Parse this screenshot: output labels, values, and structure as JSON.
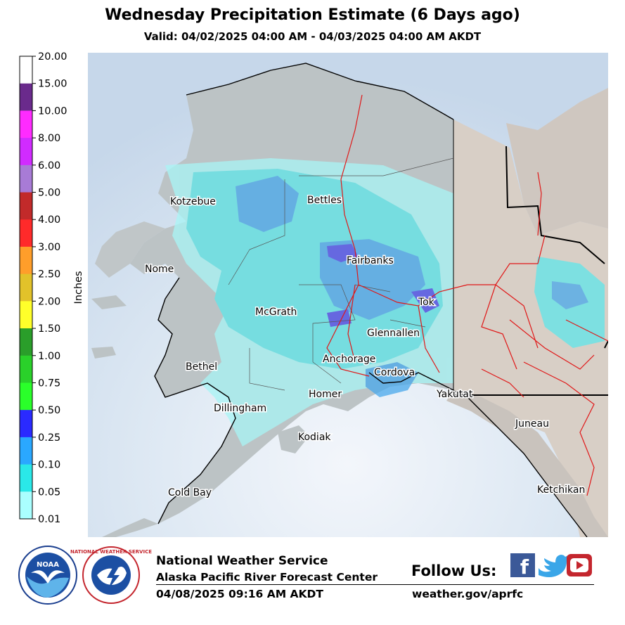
{
  "title": "Wednesday Precipitation Estimate (6 Days ago)",
  "subtitle": "Valid: 04/02/2025 04:00 AM - 04/03/2025 04:00 AM AKDT",
  "legend": {
    "axis_label": "Inches",
    "ticks": [
      "20.00",
      "15.00",
      "10.00",
      "8.00",
      "6.00",
      "5.00",
      "4.00",
      "3.00",
      "2.50",
      "2.00",
      "1.50",
      "1.00",
      "0.75",
      "0.50",
      "0.25",
      "0.10",
      "0.05",
      "0.01"
    ],
    "colors": [
      "#ffffff",
      "#6a2a8c",
      "#ff2bff",
      "#d12bff",
      "#a87bd6",
      "#c22a2a",
      "#ff2a2a",
      "#ff9e2a",
      "#e2c22a",
      "#ffff2a",
      "#2a9e2a",
      "#2ad12a",
      "#2aff2a",
      "#2a2aff",
      "#2aa8ff",
      "#2ae8e8",
      "#aaffff"
    ]
  },
  "map": {
    "cities": [
      "Kotzebue",
      "Bettles",
      "Nome",
      "Fairbanks",
      "Tok",
      "McGrath",
      "Glennallen",
      "Bethel",
      "Anchorage",
      "Cordova",
      "Homer",
      "Yakutat",
      "Dillingham",
      "Juneau",
      "Kodiak",
      "Cold Bay",
      "Ketchikan"
    ]
  },
  "footer": {
    "logo_left": "NOAA",
    "logo_right": "NATIONAL WEATHER SERVICE",
    "agency": "National Weather Service",
    "office": "Alaska Pacific River Forecast Center",
    "timestamp": "04/08/2025 09:16 AM AKDT",
    "follow": "Follow Us:",
    "website": "weather.gov/aprfc",
    "social": [
      "facebook-icon",
      "twitter-icon",
      "youtube-icon"
    ]
  }
}
